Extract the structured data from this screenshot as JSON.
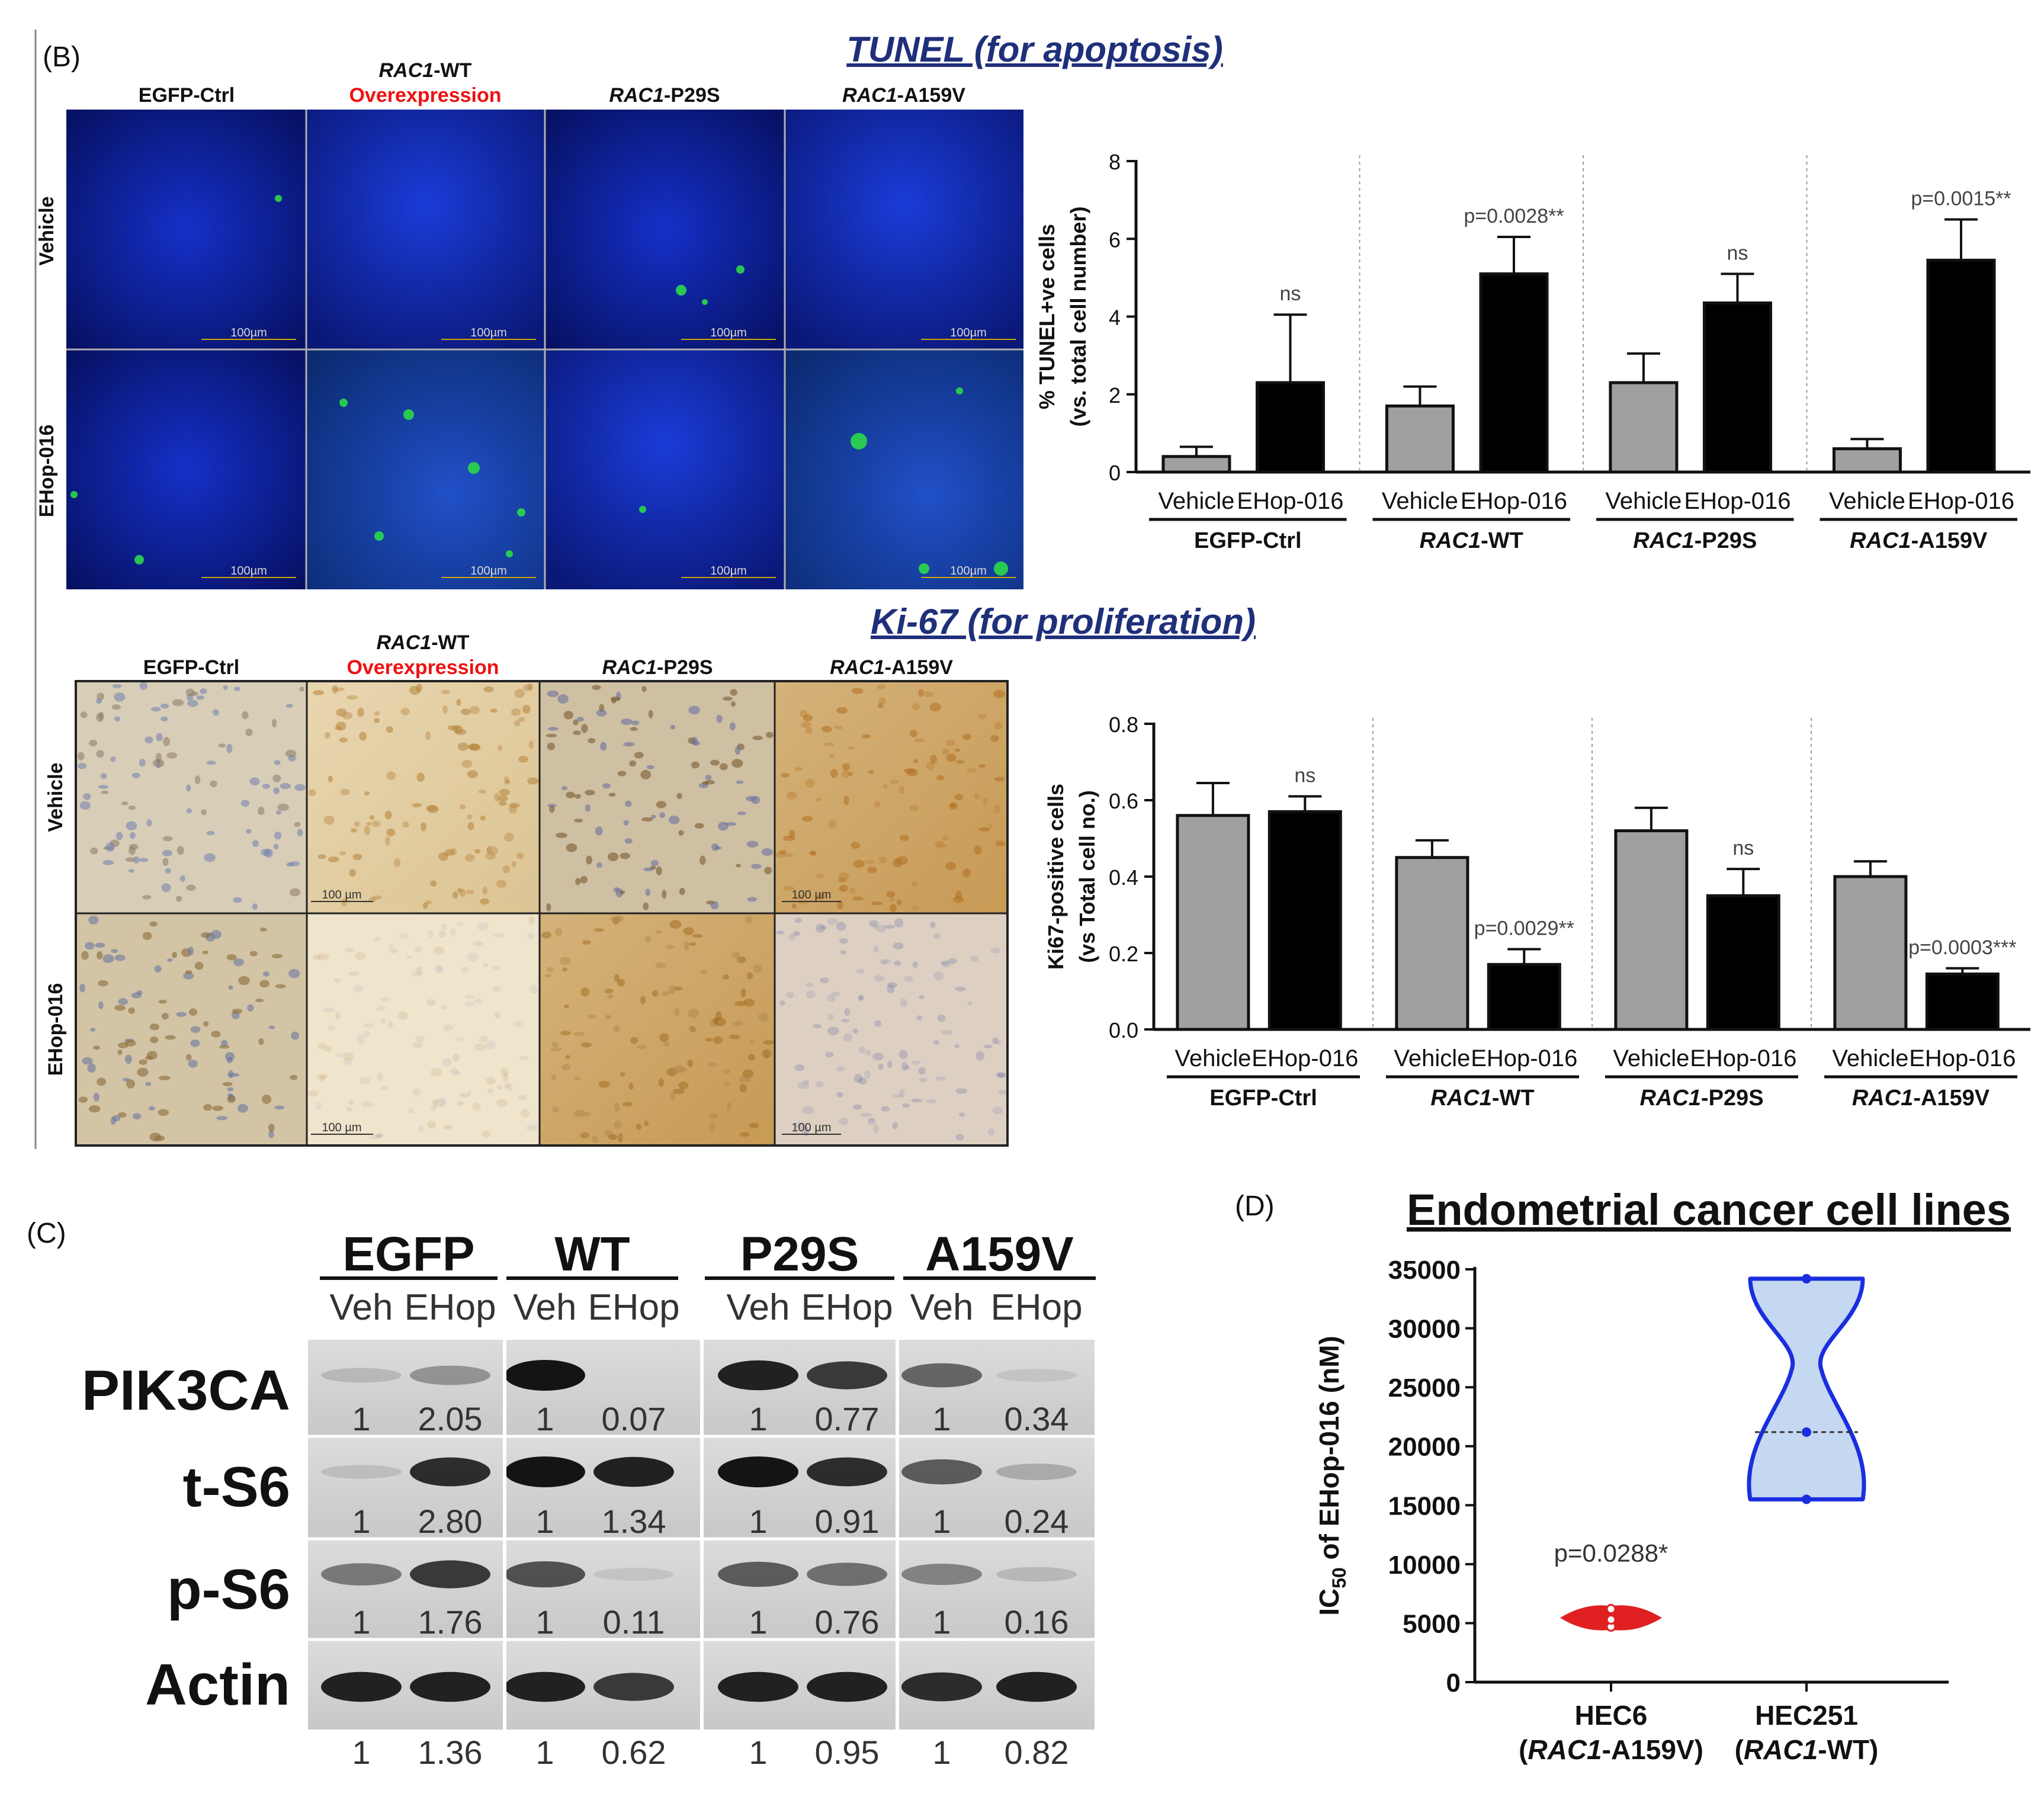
{
  "panel_b": {
    "label": "(B)",
    "tunel_title": "TUNEL (for apoptosis)",
    "ki67_title": "Ki-67 (for proliferation)",
    "column_headers": [
      {
        "italic": "",
        "plain": "EGFP-Ctrl",
        "sub": ""
      },
      {
        "italic": "RAC1",
        "plain": "-WT",
        "sub": "Overexpression"
      },
      {
        "italic": "RAC1",
        "plain": "-P29S",
        "sub": ""
      },
      {
        "italic": "RAC1",
        "plain": "-A159V",
        "sub": ""
      }
    ],
    "row_labels": [
      "Vehicle",
      "EHop-016"
    ],
    "tunel_scale_bar": "100µm",
    "ki67_scale_bar": "100 µm"
  },
  "chart_data": [
    {
      "type": "bar",
      "panel": "B-top",
      "ylabel_line1": "% TUNEL+ve cells",
      "ylabel_line2": "(vs. total cell number)",
      "ylim": [
        0,
        8
      ],
      "yticks": [
        "0",
        "2",
        "4",
        "6",
        "8"
      ],
      "treatments": [
        "Vehicle",
        "EHop-016"
      ],
      "groups": [
        {
          "italic": "",
          "plain": "EGFP-Ctrl"
        },
        {
          "italic": "RAC1",
          "plain": "-WT"
        },
        {
          "italic": "RAC1",
          "plain": "-P29S"
        },
        {
          "italic": "RAC1",
          "plain": "-A159V"
        }
      ],
      "series": [
        {
          "values": [
            0.4,
            1.7,
            2.3,
            0.6
          ],
          "errors": [
            0.25,
            0.5,
            0.75,
            0.25
          ],
          "color": "#a0a0a0"
        },
        {
          "values": [
            2.3,
            5.1,
            4.35,
            5.45
          ],
          "errors": [
            1.75,
            0.95,
            0.75,
            1.05
          ],
          "color": "#000000"
        }
      ],
      "annotations": [
        "ns",
        "p=0.0028**",
        "ns",
        "p=0.0015**"
      ]
    },
    {
      "type": "bar",
      "panel": "B-bottom",
      "ylabel_line1": "Ki67-positive cells",
      "ylabel_line2": "(vs Total cell no.)",
      "ylim": [
        0,
        0.8
      ],
      "yticks": [
        "0.0",
        "0.2",
        "0.4",
        "0.6",
        "0.8"
      ],
      "treatments": [
        "Vehicle",
        "EHop-016"
      ],
      "groups": [
        {
          "italic": "",
          "plain": "EGFP-Ctrl"
        },
        {
          "italic": "RAC1",
          "plain": "-WT"
        },
        {
          "italic": "RAC1",
          "plain": "-P29S"
        },
        {
          "italic": "RAC1",
          "plain": "-A159V"
        }
      ],
      "series": [
        {
          "values": [
            0.56,
            0.45,
            0.52,
            0.4
          ],
          "errors": [
            0.085,
            0.045,
            0.06,
            0.04
          ],
          "color": "#a0a0a0"
        },
        {
          "values": [
            0.57,
            0.17,
            0.35,
            0.145
          ],
          "errors": [
            0.04,
            0.04,
            0.07,
            0.015
          ],
          "color": "#000000"
        }
      ],
      "annotations": [
        "ns",
        "p=0.0029**",
        "ns",
        "p=0.0003***"
      ]
    },
    {
      "type": "violin",
      "panel": "D",
      "label": "(D)",
      "title": "Endometrial cancer cell lines",
      "ylabel_prefix": "IC",
      "ylabel_sub": "50",
      "ylabel_suffix": " of EHop-016 (nM)",
      "ylim": [
        0,
        35000
      ],
      "yticks": [
        "0",
        "5000",
        "10000",
        "15000",
        "20000",
        "25000",
        "30000",
        "35000"
      ],
      "categories": [
        {
          "line1": "HEC6",
          "italic": "RAC1",
          "plain": "-A159V"
        },
        {
          "line1": "HEC251",
          "italic": "RAC1",
          "plain": "-WT"
        }
      ],
      "series": [
        {
          "points": [
            4700,
            5300,
            6200
          ],
          "median": 5300,
          "range": [
            4600,
            6300
          ],
          "color": "#e02020",
          "fill": "#e02020"
        },
        {
          "points": [
            15500,
            21200,
            34200
          ],
          "median": 21200,
          "range": [
            15500,
            34200
          ],
          "color": "#1a2ee0",
          "fill": "#c5d8f1"
        }
      ],
      "annotation": "p=0.0288*"
    }
  ],
  "panel_c": {
    "label": "(C)",
    "groups": [
      "EGFP",
      "WT",
      "P29S",
      "A159V"
    ],
    "lanes": [
      "Veh",
      "EHop",
      "Veh",
      "EHop",
      "Veh",
      "EHop",
      "Veh",
      "EHop"
    ],
    "blots": [
      {
        "name": "PIK3CA",
        "values": [
          "1",
          "2.05",
          "1",
          "0.07",
          "1",
          "0.77",
          "1",
          "0.34"
        ],
        "intensity": [
          0.15,
          0.4,
          1.0,
          0.0,
          0.95,
          0.85,
          0.65,
          0.05
        ]
      },
      {
        "name": "t-S6",
        "values": [
          "1",
          "2.80",
          "1",
          "1.34",
          "1",
          "0.91",
          "1",
          "0.24"
        ],
        "intensity": [
          0.1,
          0.9,
          1.0,
          0.95,
          1.0,
          0.9,
          0.7,
          0.25
        ]
      },
      {
        "name": "p-S6",
        "values": [
          "1",
          "1.76",
          "1",
          "0.11",
          "1",
          "0.76",
          "1",
          "0.16"
        ],
        "intensity": [
          0.55,
          0.85,
          0.75,
          0.05,
          0.7,
          0.6,
          0.5,
          0.15
        ]
      },
      {
        "name": "Actin",
        "values": [
          "1",
          "1.36",
          "1",
          "0.62",
          "1",
          "0.95",
          "1",
          "0.82"
        ],
        "intensity": [
          0.95,
          0.95,
          0.95,
          0.85,
          0.95,
          0.95,
          0.9,
          0.95
        ]
      }
    ]
  }
}
